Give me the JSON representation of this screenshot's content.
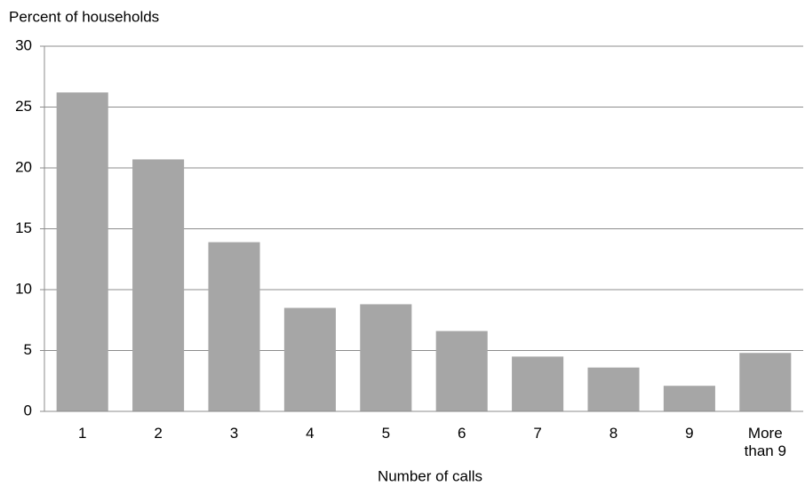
{
  "chart_data": {
    "type": "bar",
    "title": "Percent of households",
    "x_label": "Number of calls",
    "categories": [
      "1",
      "2",
      "3",
      "4",
      "5",
      "6",
      "7",
      "8",
      "9",
      "More than 9"
    ],
    "values": [
      26.2,
      20.7,
      13.9,
      8.5,
      8.8,
      6.6,
      4.5,
      3.6,
      2.1,
      4.8
    ],
    "color": "#a6a6a6",
    "ylim": [
      0,
      30
    ],
    "yticks": [
      0,
      5,
      10,
      15,
      20,
      25,
      30
    ],
    "grid": true
  }
}
